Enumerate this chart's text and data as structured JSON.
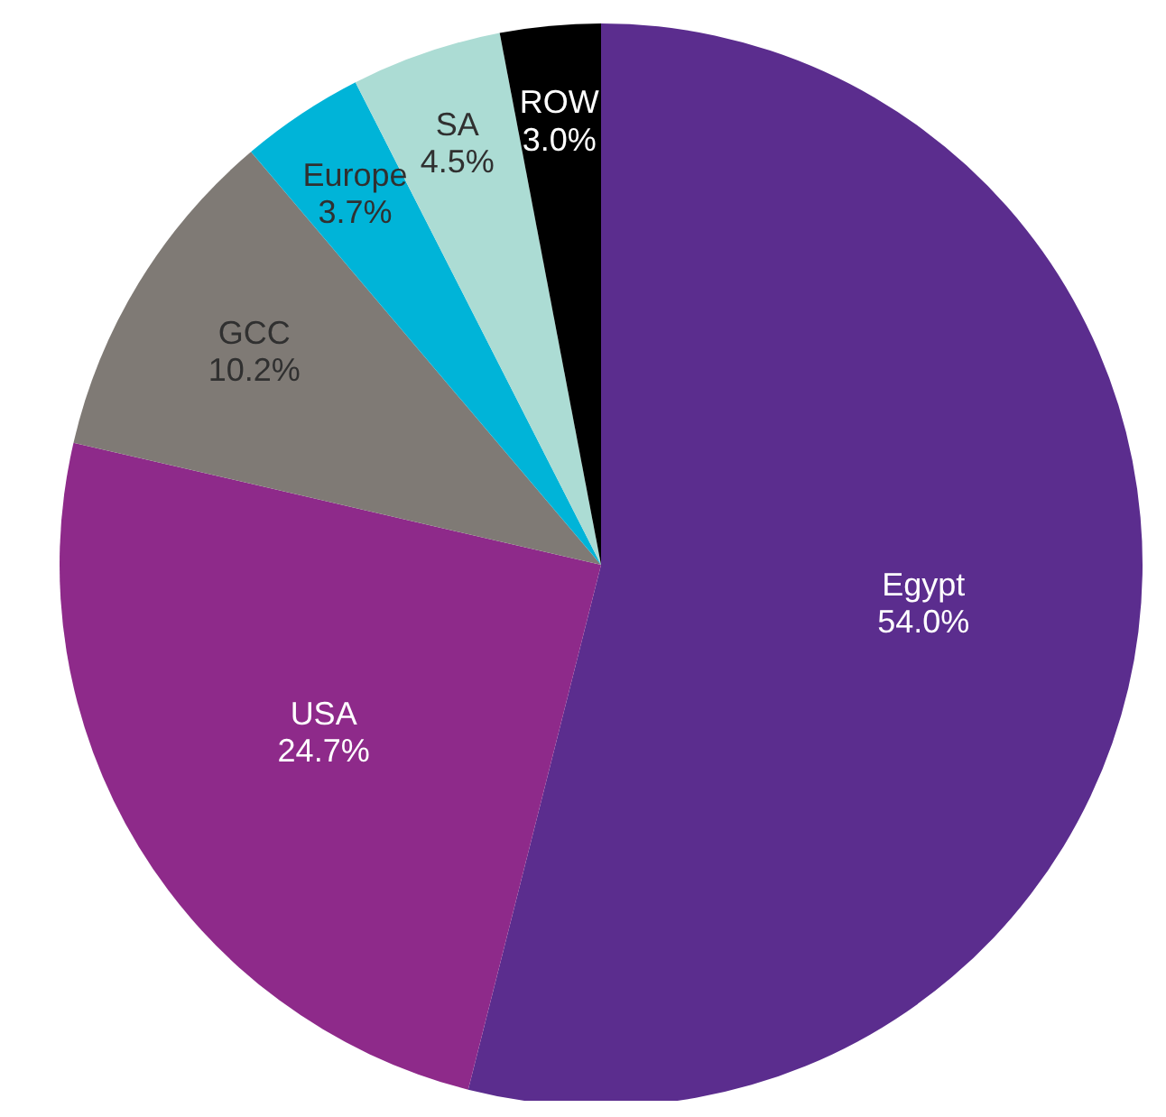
{
  "chart_data": {
    "type": "pie",
    "categories": [
      "Egypt",
      "USA",
      "GCC",
      "Europe",
      "SA",
      "ROW"
    ],
    "values": [
      54.0,
      24.7,
      10.2,
      3.7,
      4.5,
      3.0
    ],
    "colors": [
      "#5b2d8e",
      "#8e2a8a",
      "#7f7a75",
      "#00b4d8",
      "#acdcd4",
      "#000000"
    ],
    "value_labels": [
      "54.0%",
      "24.7%",
      "10.2%",
      "3.7%",
      "4.5%",
      "3.0%"
    ],
    "legend": false
  }
}
